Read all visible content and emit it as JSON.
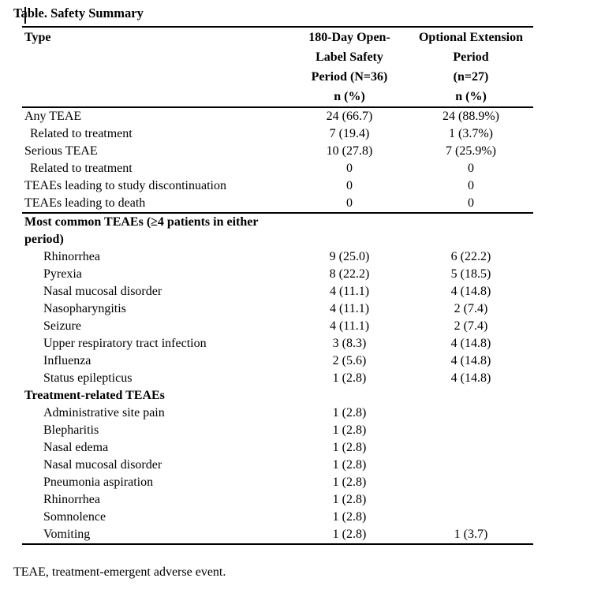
{
  "title": "Table. Safety Summary",
  "footnote": "TEAE, treatment-emergent adverse event.",
  "colors": {
    "background": "#ffffff",
    "text": "#000000",
    "rules": "#000000"
  },
  "table": {
    "header": {
      "col1": "Type",
      "col2": {
        "lines": [
          "180-Day Open-",
          "Label Safety",
          "Period (N=36)",
          "n (%)"
        ]
      },
      "col3": {
        "lines": [
          "Optional Extension",
          "Period",
          "(n=27)",
          "n (%)"
        ]
      }
    },
    "rows": [
      {
        "label": "Any TEAE",
        "col2": "24 (66.7)",
        "col3": "24 (88.9%)",
        "indent": 0,
        "bold": false,
        "rule_above": false
      },
      {
        "label": "Related to treatment",
        "col2": "7 (19.4)",
        "col3": "1 (3.7%)",
        "indent": 1,
        "bold": false,
        "rule_above": false
      },
      {
        "label": "Serious TEAE",
        "col2": "10 (27.8)",
        "col3": "7 (25.9%)",
        "indent": 0,
        "bold": false,
        "rule_above": false
      },
      {
        "label": "Related to treatment",
        "col2": "0",
        "col3": "0",
        "indent": 1,
        "bold": false,
        "rule_above": false
      },
      {
        "label": "TEAEs leading to study discontinuation",
        "col2": "0",
        "col3": "0",
        "indent": 0,
        "bold": false,
        "rule_above": false
      },
      {
        "label": "TEAEs leading to death",
        "col2": "0",
        "col3": "0",
        "indent": 0,
        "bold": false,
        "rule_above": false
      },
      {
        "label": "Most common TEAEs (≥4 patients in either period)",
        "col2": "",
        "col3": "",
        "indent": 0,
        "bold": true,
        "rule_above": true
      },
      {
        "label": "Rhinorrhea",
        "col2": "9 (25.0)",
        "col3": "6 (22.2)",
        "indent": 2,
        "bold": false,
        "rule_above": false
      },
      {
        "label": "Pyrexia",
        "col2": "8 (22.2)",
        "col3": "5 (18.5)",
        "indent": 2,
        "bold": false,
        "rule_above": false
      },
      {
        "label": "Nasal mucosal disorder",
        "col2": "4 (11.1)",
        "col3": "4 (14.8)",
        "indent": 2,
        "bold": false,
        "rule_above": false
      },
      {
        "label": "Nasopharyngitis",
        "col2": "4 (11.1)",
        "col3": "2 (7.4)",
        "indent": 2,
        "bold": false,
        "rule_above": false
      },
      {
        "label": "Seizure",
        "col2": "4 (11.1)",
        "col3": "2 (7.4)",
        "indent": 2,
        "bold": false,
        "rule_above": false
      },
      {
        "label": "Upper respiratory tract infection",
        "col2": "3 (8.3)",
        "col3": "4 (14.8)",
        "indent": 2,
        "bold": false,
        "rule_above": false
      },
      {
        "label": "Influenza",
        "col2": "2 (5.6)",
        "col3": "4 (14.8)",
        "indent": 2,
        "bold": false,
        "rule_above": false
      },
      {
        "label": "Status epilepticus",
        "col2": "1 (2.8)",
        "col3": "4 (14.8)",
        "indent": 2,
        "bold": false,
        "rule_above": false
      },
      {
        "label": "Treatment-related TEAEs",
        "col2": "",
        "col3": "",
        "indent": 0,
        "bold": true,
        "rule_above": false
      },
      {
        "label": "Administrative site pain",
        "col2": "1 (2.8)",
        "col3": "",
        "indent": 2,
        "bold": false,
        "rule_above": false
      },
      {
        "label": "Blepharitis",
        "col2": "1 (2.8)",
        "col3": "",
        "indent": 2,
        "bold": false,
        "rule_above": false
      },
      {
        "label": "Nasal edema",
        "col2": "1 (2.8)",
        "col3": "",
        "indent": 2,
        "bold": false,
        "rule_above": false
      },
      {
        "label": "Nasal mucosal disorder",
        "col2": "1 (2.8)",
        "col3": "",
        "indent": 2,
        "bold": false,
        "rule_above": false
      },
      {
        "label": "Pneumonia aspiration",
        "col2": "1 (2.8)",
        "col3": "",
        "indent": 2,
        "bold": false,
        "rule_above": false
      },
      {
        "label": "Rhinorrhea",
        "col2": "1 (2.8)",
        "col3": "",
        "indent": 2,
        "bold": false,
        "rule_above": false
      },
      {
        "label": "Somnolence",
        "col2": "1 (2.8)",
        "col3": "",
        "indent": 2,
        "bold": false,
        "rule_above": false
      },
      {
        "label": "Vomiting",
        "col2": "1 (2.8)",
        "col3": "1 (3.7)",
        "indent": 2,
        "bold": false,
        "rule_above": false
      }
    ]
  }
}
